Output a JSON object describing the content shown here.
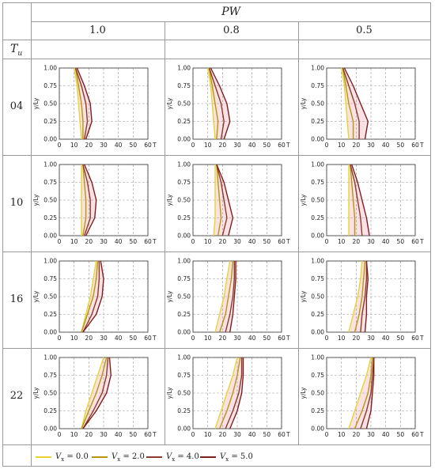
{
  "header": {
    "pw_label": "PW",
    "tu_label": "T",
    "tu_subscript": "u",
    "pw_values": [
      "1.0",
      "0.8",
      "0.5"
    ],
    "tu_values": [
      "04",
      "10",
      "16",
      "22"
    ]
  },
  "chart_data": {
    "type": "line",
    "layout": "grid of 4 rows (Tu) x 3 columns (PW)",
    "xlabel": "T",
    "ylabel": "y/Ly",
    "xlim": [
      0,
      60
    ],
    "ylim": [
      0,
      1.0
    ],
    "xticks": [
      0,
      10,
      20,
      30,
      40,
      50,
      60
    ],
    "yticks": [
      0.0,
      0.25,
      0.5,
      0.75,
      1.0
    ],
    "ytick_labels": [
      "0.00",
      "0.25",
      "0.50",
      "0.75",
      "1.00"
    ],
    "grid": true,
    "legend_position": "bottom",
    "series_styles": [
      {
        "name": "V_x = 0.0",
        "sub_var": "V",
        "sub": "x",
        "value": "0.0",
        "color": "#e8d52a"
      },
      {
        "name": "V_x = 2.0",
        "sub_var": "V",
        "sub": "x",
        "value": "2.0",
        "color": "#b8950f"
      },
      {
        "name": "V_x = 4.0",
        "sub_var": "V",
        "sub": "x",
        "value": "4.0",
        "color": "#8a3b2a"
      },
      {
        "name": "V_x = 5.0",
        "sub_var": "V",
        "sub": "x",
        "value": "5.0",
        "color": "#7a1f1f"
      }
    ],
    "y_points": [
      0.0,
      0.25,
      0.5,
      0.75,
      1.0
    ],
    "panels": [
      {
        "tu": "04",
        "pw": "1.0",
        "series": [
          {
            "name": "V_x = 0.0",
            "x": [
              15,
              14,
              13,
              12,
              10
            ]
          },
          {
            "name": "V_x = 2.0",
            "x": [
              16,
              16,
              15,
              13,
              11
            ]
          },
          {
            "name": "V_x = 4.0",
            "x": [
              17,
              19,
              18,
              15,
              11
            ]
          },
          {
            "name": "V_x = 5.0",
            "x": [
              18,
              22,
              21,
              17,
              12
            ]
          }
        ]
      },
      {
        "tu": "04",
        "pw": "0.8",
        "series": [
          {
            "name": "V_x = 0.0",
            "x": [
              15,
              14,
              13,
              12,
              10
            ]
          },
          {
            "name": "V_x = 2.0",
            "x": [
              16,
              17,
              15,
              13,
              11
            ]
          },
          {
            "name": "V_x = 4.0",
            "x": [
              19,
              21,
              19,
              15,
              11
            ]
          },
          {
            "name": "V_x = 5.0",
            "x": [
              21,
              25,
              23,
              18,
              12
            ]
          }
        ]
      },
      {
        "tu": "04",
        "pw": "0.5",
        "series": [
          {
            "name": "V_x = 0.0",
            "x": [
              15,
              14,
              13,
              12,
              10
            ]
          },
          {
            "name": "V_x = 2.0",
            "x": [
              18,
              18,
              15,
              13,
              11
            ]
          },
          {
            "name": "V_x = 4.0",
            "x": [
              22,
              22,
              19,
              15,
              11
            ]
          },
          {
            "name": "V_x = 5.0",
            "x": [
              26,
              28,
              23,
              18,
              12
            ]
          }
        ]
      },
      {
        "tu": "10",
        "pw": "1.0",
        "series": [
          {
            "name": "V_x = 0.0",
            "x": [
              15,
              15,
              15,
              15,
              15
            ]
          },
          {
            "name": "V_x = 2.0",
            "x": [
              16,
              18,
              18,
              17,
              16
            ]
          },
          {
            "name": "V_x = 4.0",
            "x": [
              17,
              21,
              21,
              19,
              16
            ]
          },
          {
            "name": "V_x = 5.0",
            "x": [
              18,
              24,
              25,
              22,
              17
            ]
          }
        ]
      },
      {
        "tu": "10",
        "pw": "0.8",
        "series": [
          {
            "name": "V_x = 0.0",
            "x": [
              14,
              15,
              15,
              15,
              15
            ]
          },
          {
            "name": "V_x = 2.0",
            "x": [
              17,
              19,
              18,
              17,
              16
            ]
          },
          {
            "name": "V_x = 4.0",
            "x": [
              20,
              23,
              21,
              19,
              16
            ]
          },
          {
            "name": "V_x = 5.0",
            "x": [
              24,
              27,
              24,
              21,
              16
            ]
          }
        ]
      },
      {
        "tu": "10",
        "pw": "0.5",
        "series": [
          {
            "name": "V_x = 0.0",
            "x": [
              15,
              15,
              15,
              15,
              15
            ]
          },
          {
            "name": "V_x = 2.0",
            "x": [
              19,
              19,
              18,
              17,
              16
            ]
          },
          {
            "name": "V_x = 4.0",
            "x": [
              24,
              23,
              21,
              19,
              16
            ]
          },
          {
            "name": "V_x = 5.0",
            "x": [
              29,
              27,
              24,
              21,
              17
            ]
          }
        ]
      },
      {
        "tu": "16",
        "pw": "1.0",
        "series": [
          {
            "name": "V_x = 0.0",
            "x": [
              15,
              18,
              21,
              23,
              25
            ]
          },
          {
            "name": "V_x = 2.0",
            "x": [
              15,
              19,
              23,
              25,
              26
            ]
          },
          {
            "name": "V_x = 4.0",
            "x": [
              16,
              22,
              26,
              27,
              27
            ]
          },
          {
            "name": "V_x = 5.0",
            "x": [
              16,
              25,
              29,
              30,
              28
            ]
          }
        ]
      },
      {
        "tu": "16",
        "pw": "0.8",
        "series": [
          {
            "name": "V_x = 0.0",
            "x": [
              15,
              18,
              21,
              23,
              25
            ]
          },
          {
            "name": "V_x = 2.0",
            "x": [
              18,
              22,
              24,
              26,
              27
            ]
          },
          {
            "name": "V_x = 4.0",
            "x": [
              22,
              25,
              27,
              28,
              28
            ]
          },
          {
            "name": "V_x = 5.0",
            "x": [
              25,
              27,
              28,
              29,
              29
            ]
          }
        ]
      },
      {
        "tu": "16",
        "pw": "0.5",
        "series": [
          {
            "name": "V_x = 0.0",
            "x": [
              15,
              18,
              21,
              23,
              24
            ]
          },
          {
            "name": "V_x = 2.0",
            "x": [
              19,
              22,
              24,
              25,
              26
            ]
          },
          {
            "name": "V_x = 4.0",
            "x": [
              23,
              24,
              26,
              27,
              27
            ]
          },
          {
            "name": "V_x = 5.0",
            "x": [
              26,
              27,
              27,
              28,
              27
            ]
          }
        ]
      },
      {
        "tu": "22",
        "pw": "1.0",
        "series": [
          {
            "name": "V_x = 0.0",
            "x": [
              15,
              18,
              22,
              26,
              30
            ]
          },
          {
            "name": "V_x = 2.0",
            "x": [
              15,
              20,
              25,
              29,
              32
            ]
          },
          {
            "name": "V_x = 4.0",
            "x": [
              16,
              23,
              29,
              32,
              33
            ]
          },
          {
            "name": "V_x = 5.0",
            "x": [
              16,
              25,
              32,
              35,
              34
            ]
          }
        ]
      },
      {
        "tu": "22",
        "pw": "0.8",
        "series": [
          {
            "name": "V_x = 0.0",
            "x": [
              15,
              19,
              23,
              27,
              30
            ]
          },
          {
            "name": "V_x = 2.0",
            "x": [
              18,
              23,
              27,
              30,
              32
            ]
          },
          {
            "name": "V_x = 4.0",
            "x": [
              22,
              27,
              31,
              33,
              33
            ]
          },
          {
            "name": "V_x = 5.0",
            "x": [
              25,
              30,
              33,
              34,
              34
            ]
          }
        ]
      },
      {
        "tu": "22",
        "pw": "0.5",
        "series": [
          {
            "name": "V_x = 0.0",
            "x": [
              15,
              19,
              23,
              27,
              30
            ]
          },
          {
            "name": "V_x = 2.0",
            "x": [
              19,
              24,
              28,
              30,
              31
            ]
          },
          {
            "name": "V_x = 4.0",
            "x": [
              23,
              27,
              30,
              31,
              32
            ]
          },
          {
            "name": "V_x = 5.0",
            "x": [
              27,
              30,
              31,
              32,
              32
            ]
          }
        ]
      }
    ]
  }
}
